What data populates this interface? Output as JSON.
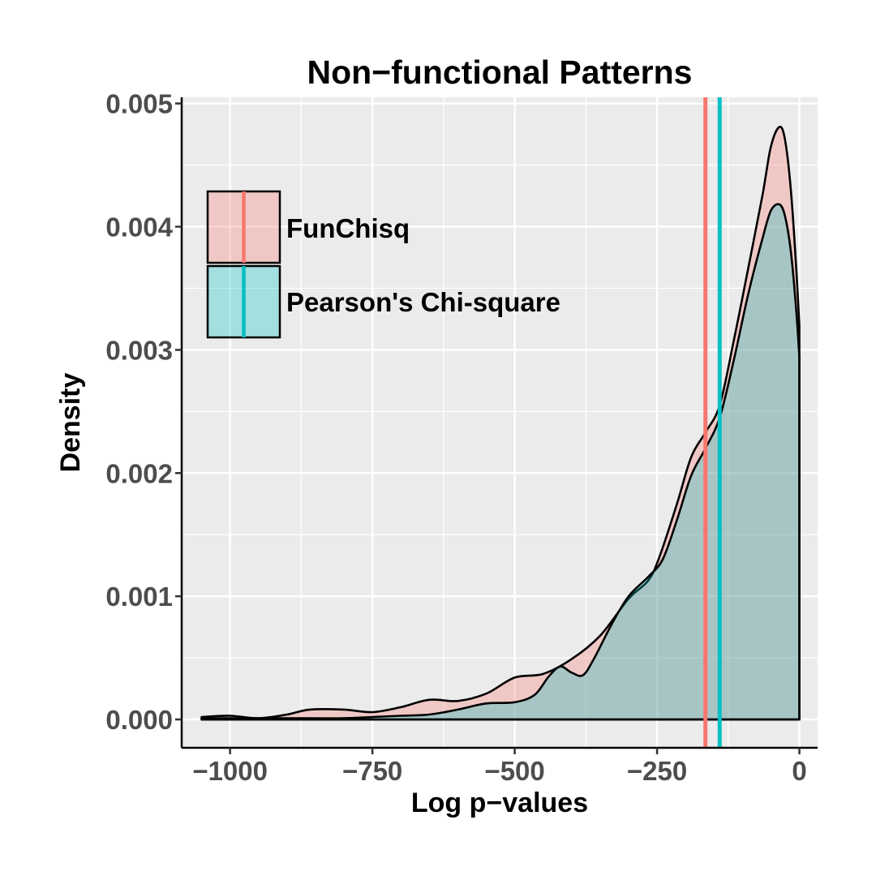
{
  "chart_data": {
    "type": "area",
    "title": "Non−functional Patterns",
    "xlabel": "Log p−values",
    "ylabel": "Density",
    "xlim": [
      -1085,
      32
    ],
    "ylim": [
      -0.00023,
      0.00505
    ],
    "x_ticks": [
      {
        "value": -1000,
        "label": "−1000"
      },
      {
        "value": -750,
        "label": "−750"
      },
      {
        "value": -500,
        "label": "−500"
      },
      {
        "value": -250,
        "label": "−250"
      },
      {
        "value": 0,
        "label": "0"
      }
    ],
    "y_ticks": [
      {
        "value": 0,
        "label": "0.000"
      },
      {
        "value": 0.001,
        "label": "0.001"
      },
      {
        "value": 0.002,
        "label": "0.002"
      },
      {
        "value": 0.003,
        "label": "0.003"
      },
      {
        "value": 0.004,
        "label": "0.004"
      },
      {
        "value": 0.005,
        "label": "0.005"
      }
    ],
    "grid": true,
    "legend_position": "top-left",
    "series": [
      {
        "name": "FunChisq",
        "fill": "#f8766d",
        "vline": -165,
        "points": [
          [
            -1050,
            2e-05
          ],
          [
            -1000,
            3e-05
          ],
          [
            -950,
            1e-05
          ],
          [
            -900,
            4e-05
          ],
          [
            -860,
            8e-05
          ],
          [
            -800,
            8e-05
          ],
          [
            -750,
            6e-05
          ],
          [
            -700,
            0.0001
          ],
          [
            -650,
            0.00016
          ],
          [
            -600,
            0.00015
          ],
          [
            -550,
            0.00021
          ],
          [
            -500,
            0.00034
          ],
          [
            -450,
            0.00037
          ],
          [
            -400,
            0.00049
          ],
          [
            -350,
            0.00068
          ],
          [
            -300,
            0.00098
          ],
          [
            -265,
            0.00113
          ],
          [
            -245,
            0.00133
          ],
          [
            -215,
            0.00175
          ],
          [
            -190,
            0.00213
          ],
          [
            -165,
            0.00233
          ],
          [
            -140,
            0.00255
          ],
          [
            -115,
            0.00308
          ],
          [
            -90,
            0.00366
          ],
          [
            -65,
            0.00425
          ],
          [
            -50,
            0.00465
          ],
          [
            -35,
            0.00481
          ],
          [
            -25,
            0.0047
          ],
          [
            -15,
            0.0043
          ],
          [
            -6,
            0.0037
          ],
          [
            0,
            0.0032
          ],
          [
            0,
            0
          ]
        ]
      },
      {
        "name": "Pearson's Chi-square",
        "fill": "#00bfc4",
        "vline": -140,
        "points": [
          [
            -1050,
            1e-05
          ],
          [
            -1000,
            1e-05
          ],
          [
            -950,
            1e-05
          ],
          [
            -900,
            1e-05
          ],
          [
            -800,
            1e-05
          ],
          [
            -750,
            2e-05
          ],
          [
            -700,
            3e-05
          ],
          [
            -650,
            4e-05
          ],
          [
            -600,
            8e-05
          ],
          [
            -550,
            0.00013
          ],
          [
            -500,
            0.00014
          ],
          [
            -465,
            0.0002
          ],
          [
            -440,
            0.00035
          ],
          [
            -420,
            0.00043
          ],
          [
            -400,
            0.00038
          ],
          [
            -380,
            0.00036
          ],
          [
            -360,
            0.0005
          ],
          [
            -330,
            0.00077
          ],
          [
            -300,
            0.001
          ],
          [
            -265,
            0.00116
          ],
          [
            -240,
            0.0013
          ],
          [
            -215,
            0.00162
          ],
          [
            -190,
            0.00198
          ],
          [
            -165,
            0.0022
          ],
          [
            -140,
            0.00245
          ],
          [
            -115,
            0.00292
          ],
          [
            -90,
            0.00345
          ],
          [
            -65,
            0.0039
          ],
          [
            -50,
            0.00413
          ],
          [
            -35,
            0.00418
          ],
          [
            -25,
            0.00408
          ],
          [
            -15,
            0.0038
          ],
          [
            -6,
            0.00335
          ],
          [
            0,
            0.00295
          ],
          [
            0,
            0
          ]
        ]
      }
    ]
  }
}
